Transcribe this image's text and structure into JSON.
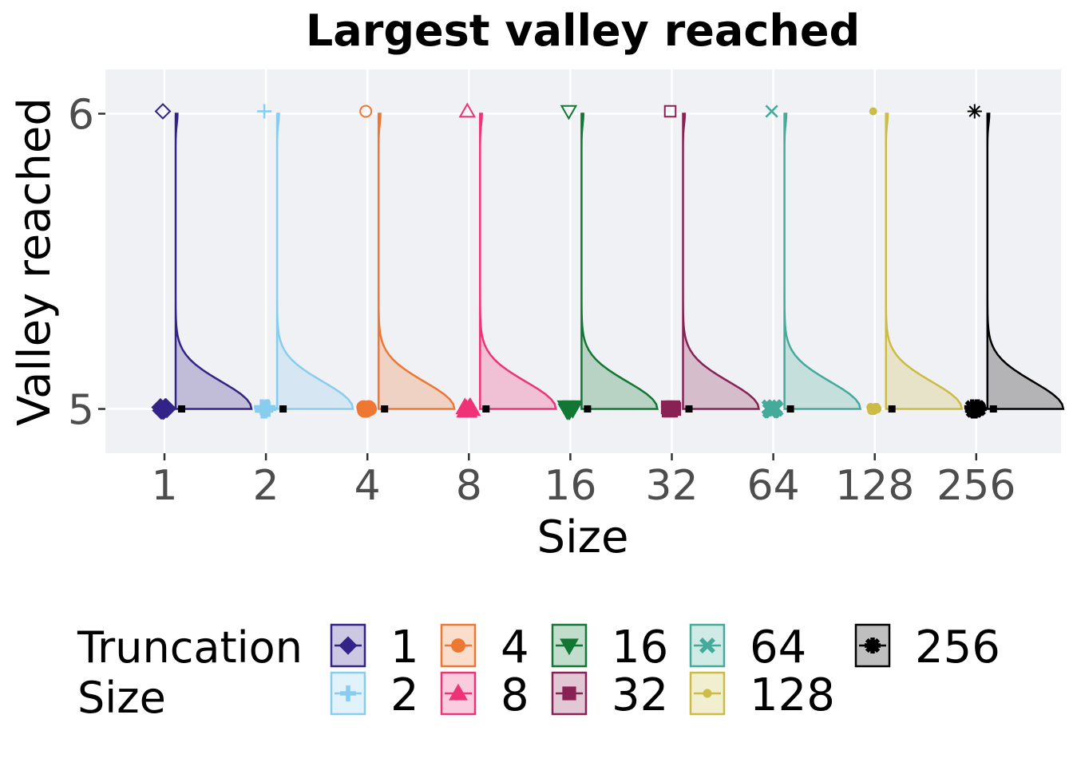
{
  "chart_data": {
    "type": "raincloud",
    "title": "Largest valley reached",
    "xlabel": "Size",
    "ylabel": "Valley reached",
    "categories": [
      "1",
      "2",
      "4",
      "8",
      "16",
      "32",
      "64",
      "128",
      "256"
    ],
    "y_ticks": [
      "5",
      "6"
    ],
    "ylim": [
      4.85,
      6.15
    ],
    "grid": true,
    "legend": {
      "title_lines": [
        "Truncation",
        "Size"
      ],
      "placement": "bottom"
    },
    "series": [
      {
        "name": "1",
        "color": "#332288",
        "shape": "diamond",
        "low_value": 5,
        "high_value": 6,
        "median": 5
      },
      {
        "name": "2",
        "color": "#88CCEE",
        "shape": "plus",
        "low_value": 5,
        "high_value": 6,
        "median": 5
      },
      {
        "name": "4",
        "color": "#EE7733",
        "shape": "circle-open",
        "low_value": 5,
        "high_value": 6,
        "median": 5
      },
      {
        "name": "8",
        "color": "#EE3377",
        "shape": "triangle-up",
        "low_value": 5,
        "high_value": 6,
        "median": 5
      },
      {
        "name": "16",
        "color": "#117733",
        "shape": "triangle-down",
        "low_value": 5,
        "high_value": 6,
        "median": 5
      },
      {
        "name": "32",
        "color": "#882255",
        "shape": "square",
        "low_value": 5,
        "high_value": 6,
        "median": 5
      },
      {
        "name": "64",
        "color": "#44AA99",
        "shape": "cross",
        "low_value": 5,
        "high_value": 6,
        "median": 5
      },
      {
        "name": "128",
        "color": "#CCBB44",
        "shape": "dot",
        "low_value": 5,
        "high_value": 6,
        "median": 5
      },
      {
        "name": "256",
        "color": "#000000",
        "shape": "asterisk",
        "low_value": 5,
        "high_value": 6,
        "median": 5
      }
    ]
  }
}
